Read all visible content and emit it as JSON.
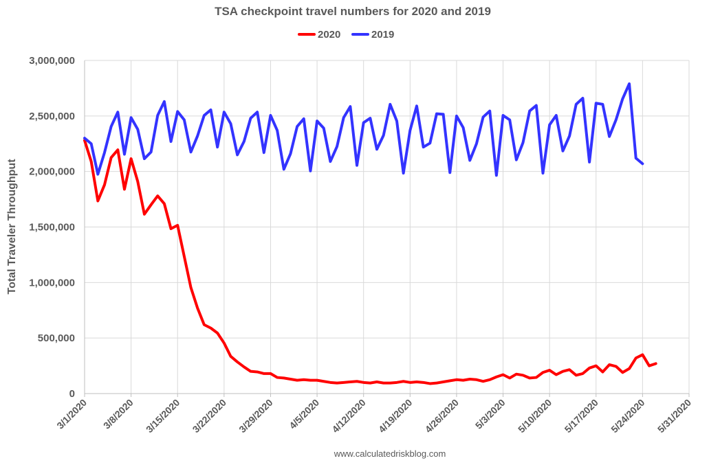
{
  "chart_data": {
    "type": "line",
    "title": "TSA checkpoint travel numbers for 2020 and 2019",
    "xlabel": "",
    "ylabel": "Total Traveler Throughput",
    "source": "www.calculatedriskblog.com",
    "ylim": [
      0,
      3000000
    ],
    "y_ticks": [
      0,
      500000,
      1000000,
      1500000,
      2000000,
      2500000,
      3000000
    ],
    "y_tick_labels": [
      "0",
      "500,000",
      "1,000,000",
      "1,500,000",
      "2,000,000",
      "2,500,000",
      "3,000,000"
    ],
    "x_range_days": [
      0,
      91
    ],
    "x_ticks": [
      0,
      7,
      14,
      21,
      28,
      35,
      42,
      49,
      56,
      63,
      70,
      77,
      84,
      91
    ],
    "x_tick_labels": [
      "3/1/2020",
      "3/8/2020",
      "3/15/2020",
      "3/22/2020",
      "3/29/2020",
      "4/5/2020",
      "4/12/2020",
      "4/19/2020",
      "4/26/2020",
      "5/3/2020",
      "5/10/2020",
      "5/17/2020",
      "5/24/2020",
      "5/31/2020"
    ],
    "legend_position": "top-center",
    "series": [
      {
        "name": "2020",
        "color": "#ff0000",
        "values": [
          2280000,
          2090000,
          1735000,
          1880000,
          2125000,
          2195000,
          1840000,
          2115000,
          1910000,
          1615000,
          1700000,
          1780000,
          1710000,
          1485000,
          1515000,
          1235000,
          955000,
          770000,
          620000,
          590000,
          545000,
          455000,
          335000,
          285000,
          240000,
          200000,
          195000,
          180000,
          180000,
          145000,
          140000,
          130000,
          120000,
          125000,
          120000,
          120000,
          110000,
          100000,
          95000,
          100000,
          105000,
          110000,
          100000,
          95000,
          105000,
          95000,
          95000,
          100000,
          110000,
          100000,
          105000,
          100000,
          90000,
          95000,
          105000,
          115000,
          125000,
          120000,
          130000,
          125000,
          110000,
          125000,
          150000,
          170000,
          140000,
          175000,
          165000,
          140000,
          145000,
          190000,
          210000,
          170000,
          200000,
          215000,
          165000,
          180000,
          230000,
          250000,
          195000,
          260000,
          245000,
          190000,
          225000,
          320000,
          350000,
          250000,
          270000
        ]
      },
      {
        "name": "2019",
        "color": "#3333ff",
        "values": [
          2300000,
          2250000,
          1975000,
          2170000,
          2405000,
          2535000,
          2155000,
          2485000,
          2380000,
          2115000,
          2175000,
          2505000,
          2630000,
          2270000,
          2540000,
          2465000,
          2175000,
          2320000,
          2505000,
          2555000,
          2220000,
          2535000,
          2430000,
          2150000,
          2270000,
          2480000,
          2535000,
          2170000,
          2505000,
          2370000,
          2020000,
          2160000,
          2405000,
          2475000,
          2005000,
          2455000,
          2390000,
          2090000,
          2225000,
          2485000,
          2585000,
          2055000,
          2440000,
          2480000,
          2200000,
          2325000,
          2605000,
          2455000,
          1985000,
          2370000,
          2590000,
          2220000,
          2255000,
          2520000,
          2515000,
          1990000,
          2500000,
          2395000,
          2100000,
          2250000,
          2490000,
          2545000,
          1965000,
          2505000,
          2465000,
          2105000,
          2260000,
          2545000,
          2595000,
          1985000,
          2420000,
          2505000,
          2185000,
          2320000,
          2605000,
          2660000,
          2085000,
          2615000,
          2605000,
          2315000,
          2465000,
          2655000,
          2790000,
          2120000,
          2070000
        ]
      }
    ]
  }
}
